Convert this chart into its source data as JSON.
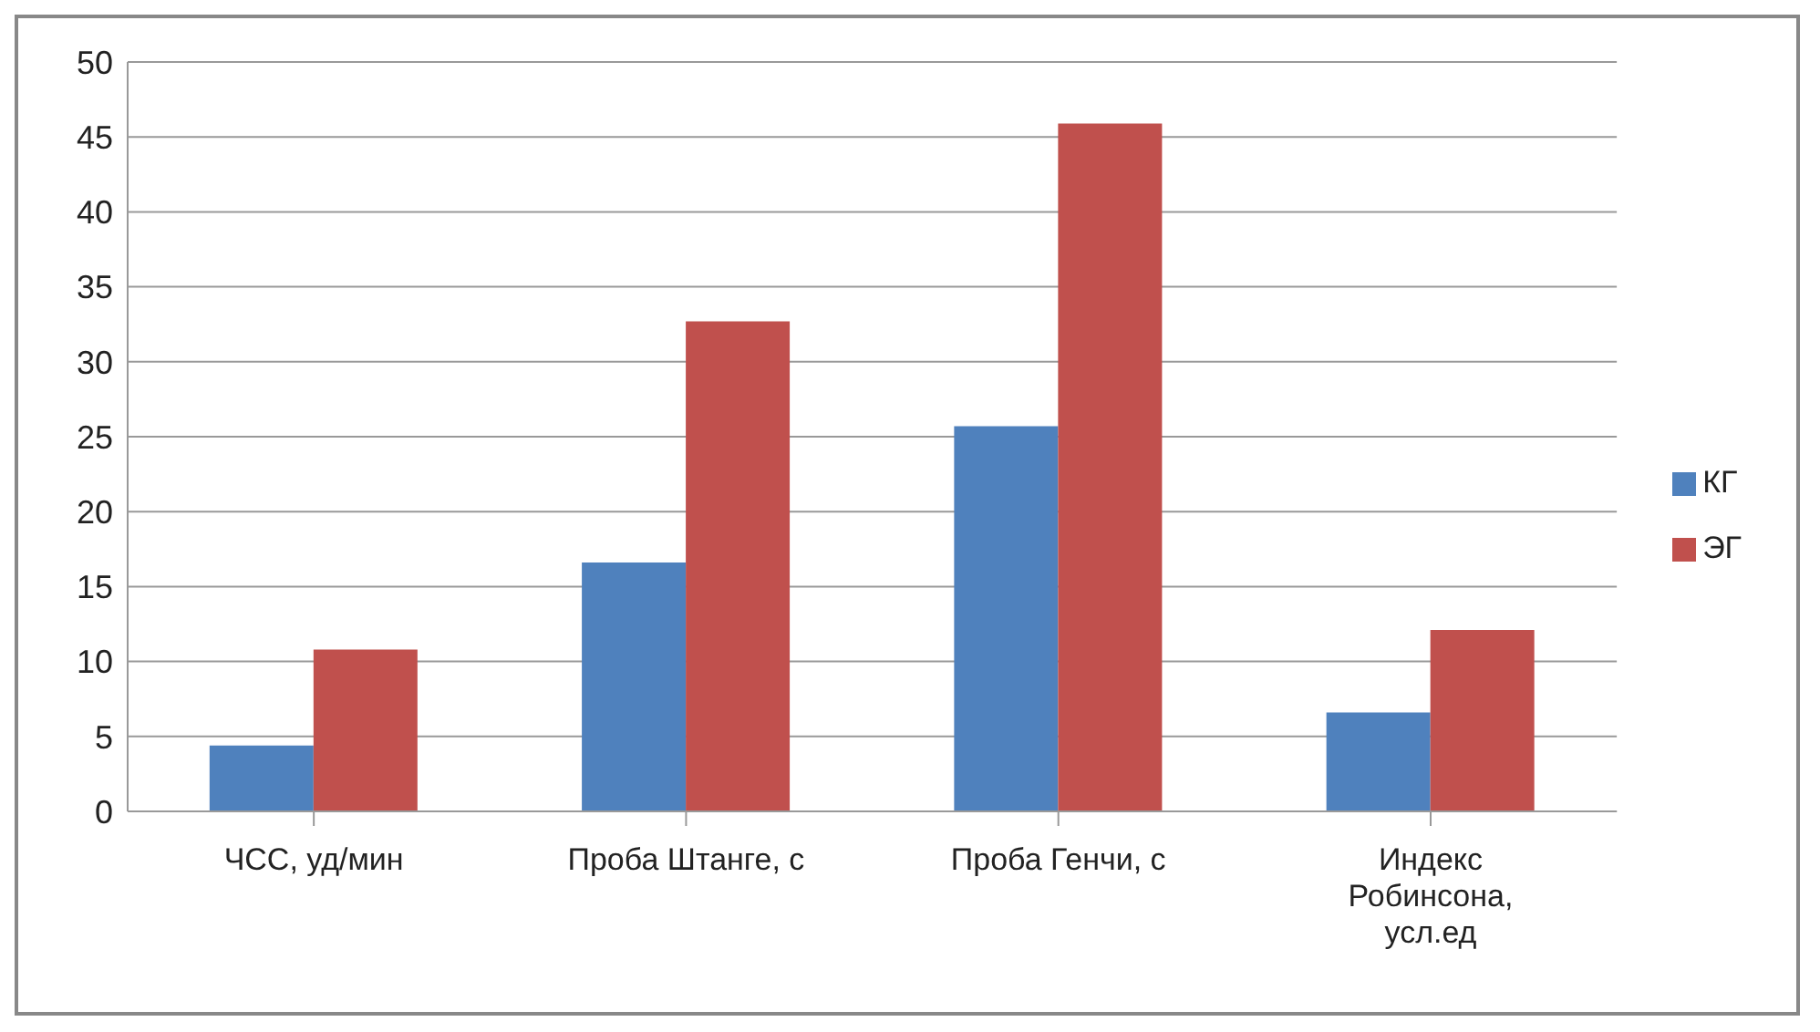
{
  "chart_data": {
    "type": "bar",
    "categories": [
      "ЧСС, уд/мин",
      "Проба Штанге, с",
      "Проба Генчи, с",
      "Индекс Робинсона, усл.ед"
    ],
    "series": [
      {
        "name": "КГ",
        "color": "#4f81bd",
        "values": [
          4.4,
          16.6,
          25.7,
          6.6
        ]
      },
      {
        "name": "ЭГ",
        "color": "#c0504d",
        "values": [
          10.8,
          32.7,
          45.9,
          12.1
        ]
      }
    ],
    "ylim": [
      0,
      50
    ],
    "yticks": [
      0,
      5,
      10,
      15,
      20,
      25,
      30,
      35,
      40,
      45,
      50
    ],
    "grid": "y",
    "legend": "right"
  }
}
